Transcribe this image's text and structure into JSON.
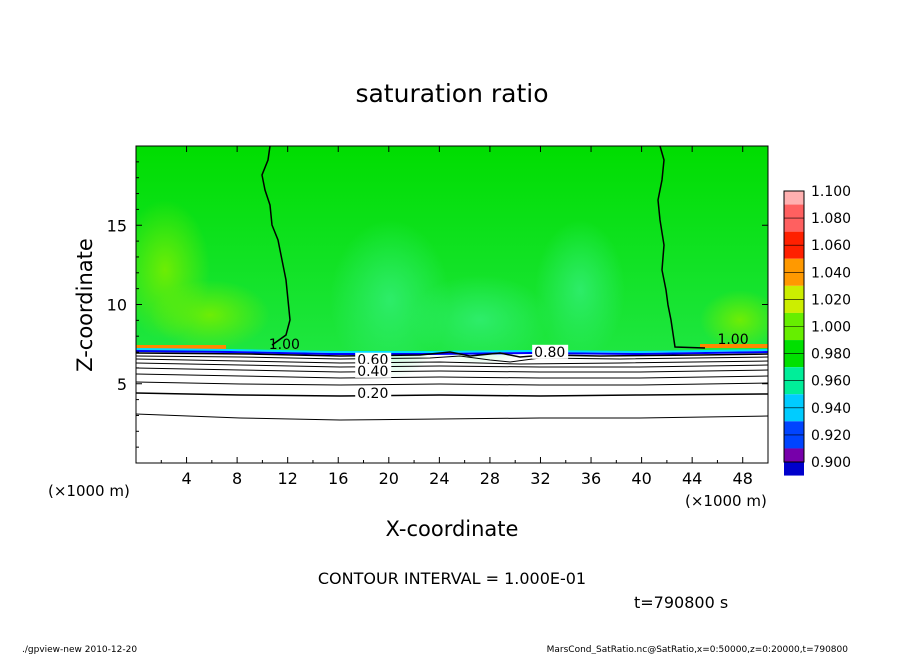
{
  "chart_data": {
    "type": "heatmap",
    "title": "saturation ratio",
    "xlabel": "X-coordinate",
    "ylabel": "Z-coordinate",
    "x_unit_note": "(×1000 m)",
    "y_unit_note": "(×1000 m)",
    "xlim": [
      0,
      50
    ],
    "ylim": [
      0,
      20
    ],
    "x_ticks": [
      4,
      8,
      12,
      16,
      20,
      24,
      28,
      32,
      36,
      40,
      44,
      48
    ],
    "y_ticks": [
      5,
      10,
      15
    ],
    "contour_interval_text": "CONTOUR INTERVAL = 1.000E-01",
    "time_text": "t=790800 s",
    "contour_labels": [
      {
        "text": "1.00",
        "x": 10.5,
        "y": 7.2
      },
      {
        "text": "0.60",
        "x": 17.5,
        "y": 6.2
      },
      {
        "text": "0.40",
        "x": 17.5,
        "y": 5.5
      },
      {
        "text": "0.20",
        "x": 17.5,
        "y": 4.1
      },
      {
        "text": "0.80",
        "x": 31.5,
        "y": 6.7
      },
      {
        "text": "1.00",
        "x": 46.0,
        "y": 7.5
      }
    ],
    "contour_levels": [
      0.1,
      0.2,
      0.3,
      0.4,
      0.5,
      0.6,
      0.7,
      0.8,
      0.9,
      1.0
    ],
    "colorbar": {
      "levels": [
        "1.100",
        "1.080",
        "1.060",
        "1.040",
        "1.020",
        "1.000",
        "0.980",
        "0.960",
        "0.940",
        "0.920",
        "0.900"
      ],
      "colors": [
        "#ffb0b0",
        "#ff6060",
        "#ff2000",
        "#ff9900",
        "#ccee00",
        "#66ee00",
        "#00e000",
        "#00ee99",
        "#00ccff",
        "#0044ff",
        "#0000cc",
        "#7700aa"
      ]
    },
    "summary": "Above ~7 km saturation ratio ≈ 1.00–1.02 (green); below ~7 km ratio drops from 0.9 to ~0.1 near ground (white, contoured)."
  },
  "footer": {
    "left": "./gpview-new   2010-12-20",
    "right": "MarsCond_SatRatio.nc@SatRatio,x=0:50000,z=0:20000,t=790800"
  }
}
